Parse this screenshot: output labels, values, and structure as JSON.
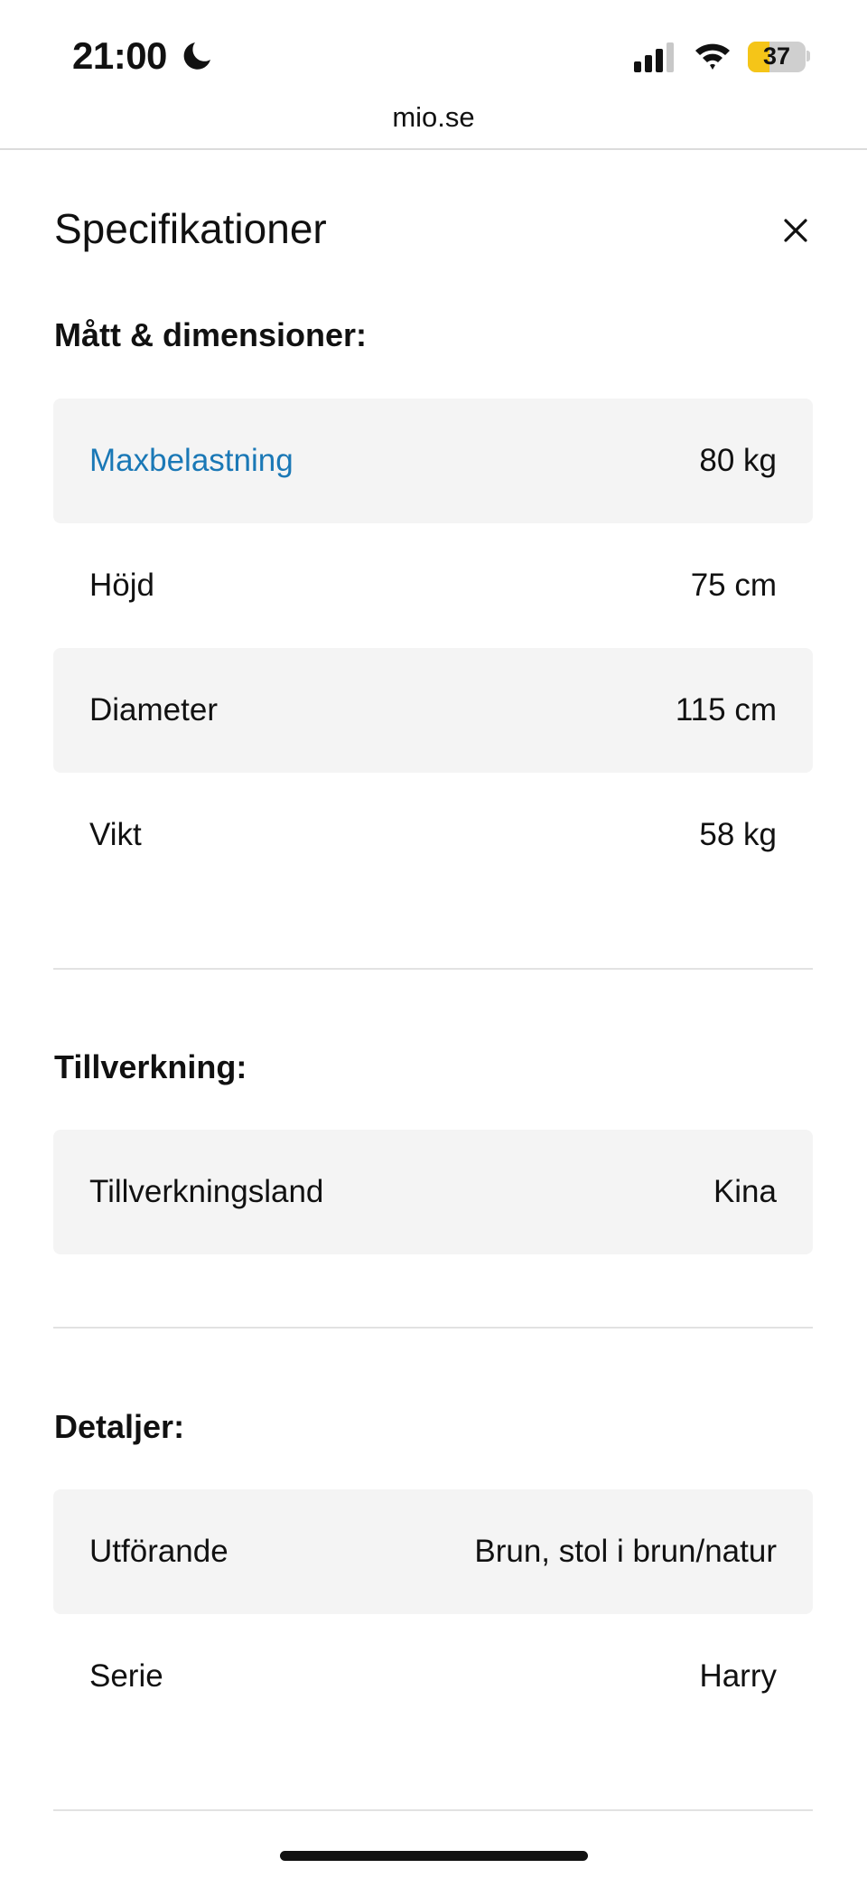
{
  "status_bar": {
    "time": "21:00",
    "battery": "37",
    "battery_level_percent": 37,
    "icons": [
      "moon-icon",
      "signal-icon",
      "wifi-icon",
      "battery-icon"
    ]
  },
  "browser": {
    "url": "mio.se"
  },
  "panel": {
    "title": "Specifikationer",
    "close_icon": "close-icon",
    "link_color": "#1a78b6",
    "sections": [
      {
        "heading": "Mått & dimensioner:",
        "rows": [
          {
            "label": "Maxbelastning",
            "value": "80 kg"
          },
          {
            "label": "Höjd",
            "value": "75 cm"
          },
          {
            "label": "Diameter",
            "value": "115 cm"
          },
          {
            "label": "Vikt",
            "value": "58 kg"
          }
        ]
      },
      {
        "heading": "Tillverkning:",
        "rows": [
          {
            "label": "Tillverkningsland",
            "value": "Kina"
          }
        ]
      },
      {
        "heading": "Detaljer:",
        "rows": [
          {
            "label": "Utförande",
            "value": "Brun, stol i brun/natur"
          },
          {
            "label": "Serie",
            "value": "Harry"
          }
        ]
      }
    ]
  }
}
